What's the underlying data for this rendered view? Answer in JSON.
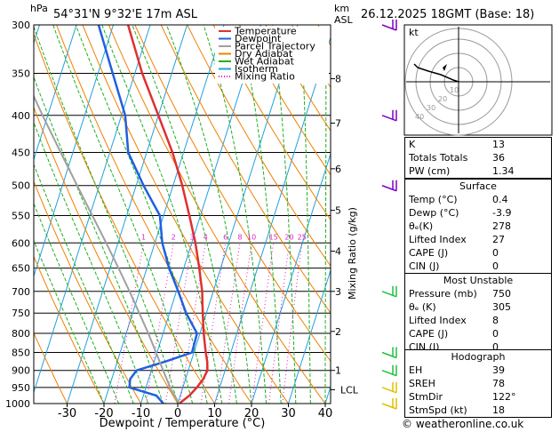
{
  "header": {
    "location": "54°31'N  9°32'E  17m  ASL",
    "datetime": "26.12.2025  18GMT  (Base: 18)",
    "hpa_label": "hPa",
    "km_label": "km",
    "asl_label": "ASL"
  },
  "chart_data": {
    "type": "skew-t",
    "xlabel": "Dewpoint / Temperature (°C)",
    "ylabel_right": "Mixing Ratio (g/kg)",
    "x_ticks": [
      -30,
      -20,
      -10,
      0,
      10,
      20,
      30,
      40
    ],
    "pressure_levels": [
      300,
      350,
      400,
      450,
      500,
      550,
      600,
      650,
      700,
      750,
      800,
      850,
      900,
      950,
      1000
    ],
    "km_levels": [
      {
        "km": "8",
        "p": 356
      },
      {
        "km": "7",
        "p": 410
      },
      {
        "km": "6",
        "p": 474
      },
      {
        "km": "5",
        "p": 541
      },
      {
        "km": "4",
        "p": 616
      },
      {
        "km": "3",
        "p": 700
      },
      {
        "km": "2",
        "p": 795
      },
      {
        "km": "1",
        "p": 900
      },
      {
        "km": "LCL",
        "p": 957
      }
    ],
    "mixing_ratio_labels": [
      "1",
      "2",
      "3",
      "4",
      "6",
      "8",
      "10",
      "15",
      "20",
      "25"
    ],
    "mixing_ratio_values": [
      1,
      2,
      3,
      4,
      6,
      8,
      10,
      15,
      20,
      25
    ],
    "legend": [
      {
        "name": "Temperature",
        "color": "#e03030",
        "style": "solid"
      },
      {
        "name": "Dewpoint",
        "color": "#2060e0",
        "style": "solid"
      },
      {
        "name": "Parcel Trajectory",
        "color": "#a0a0a0",
        "style": "solid"
      },
      {
        "name": "Dry Adiabat",
        "color": "#f08000",
        "style": "solid"
      },
      {
        "name": "Wet Adiabat",
        "color": "#20b020",
        "style": "solid"
      },
      {
        "name": "Isotherm",
        "color": "#20a0e0",
        "style": "solid"
      },
      {
        "name": "Mixing Ratio",
        "color": "#e020c0",
        "style": "dotted"
      }
    ],
    "series": [
      {
        "name": "Temperature",
        "points": [
          [
            1000,
            0.4
          ],
          [
            975,
            2.5
          ],
          [
            950,
            3.8
          ],
          [
            925,
            4.8
          ],
          [
            900,
            5.2
          ],
          [
            875,
            4.4
          ],
          [
            850,
            3.2
          ],
          [
            800,
            1.0
          ],
          [
            750,
            -1.0
          ],
          [
            700,
            -3.0
          ],
          [
            650,
            -5.8
          ],
          [
            600,
            -9.0
          ],
          [
            550,
            -13.0
          ],
          [
            500,
            -17.5
          ],
          [
            450,
            -23.0
          ],
          [
            400,
            -30.0
          ],
          [
            350,
            -38.0
          ],
          [
            300,
            -46.0
          ]
        ]
      },
      {
        "name": "Dewpoint",
        "points": [
          [
            1000,
            -3.9
          ],
          [
            975,
            -6.5
          ],
          [
            950,
            -14.5
          ],
          [
            925,
            -15.0
          ],
          [
            900,
            -14.0
          ],
          [
            875,
            -7.0
          ],
          [
            850,
            -0.5
          ],
          [
            800,
            -0.8
          ],
          [
            750,
            -5.5
          ],
          [
            700,
            -9.5
          ],
          [
            650,
            -14.0
          ],
          [
            600,
            -18.0
          ],
          [
            550,
            -21.0
          ],
          [
            500,
            -28.0
          ],
          [
            450,
            -35.0
          ],
          [
            400,
            -39.0
          ],
          [
            350,
            -46.0
          ],
          [
            300,
            -54.0
          ]
        ]
      },
      {
        "name": "Parcel Trajectory",
        "points": [
          [
            1000,
            0.4
          ],
          [
            957,
            -3.0
          ],
          [
            900,
            -6.8
          ],
          [
            850,
            -10.3
          ],
          [
            800,
            -14.0
          ],
          [
            750,
            -18.2
          ],
          [
            700,
            -22.7
          ],
          [
            650,
            -27.7
          ],
          [
            600,
            -33.2
          ],
          [
            550,
            -39.3
          ],
          [
            500,
            -46.0
          ],
          [
            450,
            -53.3
          ],
          [
            400,
            -61.4
          ],
          [
            350,
            -70.3
          ],
          [
            300,
            -80.1
          ]
        ]
      }
    ],
    "wind_barbs_pressure": [
      300,
      400,
      500,
      700,
      850,
      900,
      950,
      1000
    ]
  },
  "hodograph": {
    "label": "kt",
    "ring_labels": [
      "10",
      "20",
      "30",
      "40"
    ]
  },
  "indices": {
    "rows": [
      {
        "k": "K",
        "v": "13"
      },
      {
        "k": "Totals Totals",
        "v": "36"
      },
      {
        "k": "PW (cm)",
        "v": "1.34"
      }
    ]
  },
  "surface": {
    "title": "Surface",
    "rows": [
      {
        "k": "Temp (°C)",
        "v": "0.4"
      },
      {
        "k": "Dewp (°C)",
        "v": "-3.9"
      },
      {
        "k": "θₑ(K)",
        "v": "278"
      },
      {
        "k": "Lifted Index",
        "v": "27"
      },
      {
        "k": "CAPE (J)",
        "v": "0"
      },
      {
        "k": "CIN (J)",
        "v": "0"
      }
    ]
  },
  "most_unstable": {
    "title": "Most Unstable",
    "rows": [
      {
        "k": "Pressure (mb)",
        "v": "750"
      },
      {
        "k": "θₑ (K)",
        "v": "305"
      },
      {
        "k": "Lifted Index",
        "v": "8"
      },
      {
        "k": "CAPE (J)",
        "v": "0"
      },
      {
        "k": "CIN (J)",
        "v": "0"
      }
    ]
  },
  "hodograph_table": {
    "title": "Hodograph",
    "rows": [
      {
        "k": "EH",
        "v": "39"
      },
      {
        "k": "SREH",
        "v": "78"
      },
      {
        "k": "StmDir",
        "v": "122°"
      },
      {
        "k": "StmSpd (kt)",
        "v": "18"
      }
    ]
  },
  "footer": {
    "copyright": "© weatheronline.co.uk"
  },
  "colors": {
    "temperature": "#e03030",
    "dewpoint": "#2060e0",
    "parcel": "#a0a0a0",
    "dry": "#f08000",
    "wet": "#20b020",
    "iso": "#20a0e0",
    "mix": "#e020c0"
  }
}
